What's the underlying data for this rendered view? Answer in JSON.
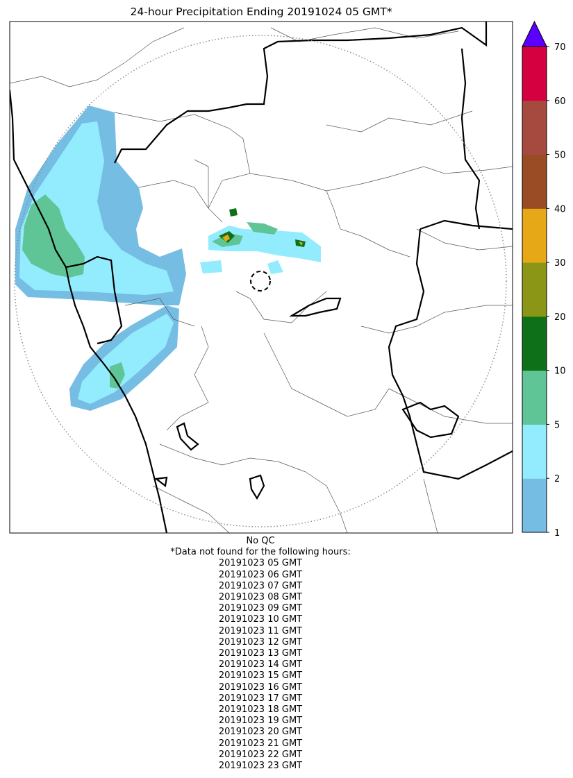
{
  "title": "24-hour Precipitation Ending 20191024 05 GMT*",
  "colorbar": {
    "ticks": [
      "1",
      "2",
      "5",
      "10",
      "20",
      "30",
      "40",
      "50",
      "60",
      "70"
    ],
    "colors": [
      "#76bde3",
      "#93ecfd",
      "#5fc597",
      "#0e7018",
      "#8b9617",
      "#e6a816",
      "#9a4c25",
      "#a6493f",
      "#d5003f"
    ],
    "over_color": "#5a00ff",
    "extend": "max"
  },
  "map": {
    "radar_range_ring": "dotted circle",
    "radar_site_marker": "dashed circle",
    "precip_field": "legend-colored accumulation"
  },
  "footer": {
    "qc_note": "No QC",
    "missing_header": "*Data not found for the following hours:",
    "missing_hours": [
      "20191023 05 GMT",
      "20191023 06 GMT",
      "20191023 07 GMT",
      "20191023 08 GMT",
      "20191023 09 GMT",
      "20191023 10 GMT",
      "20191023 11 GMT",
      "20191023 12 GMT",
      "20191023 13 GMT",
      "20191023 14 GMT",
      "20191023 15 GMT",
      "20191023 16 GMT",
      "20191023 17 GMT",
      "20191023 18 GMT",
      "20191023 19 GMT",
      "20191023 20 GMT",
      "20191023 21 GMT",
      "20191023 22 GMT",
      "20191023 23 GMT"
    ]
  }
}
